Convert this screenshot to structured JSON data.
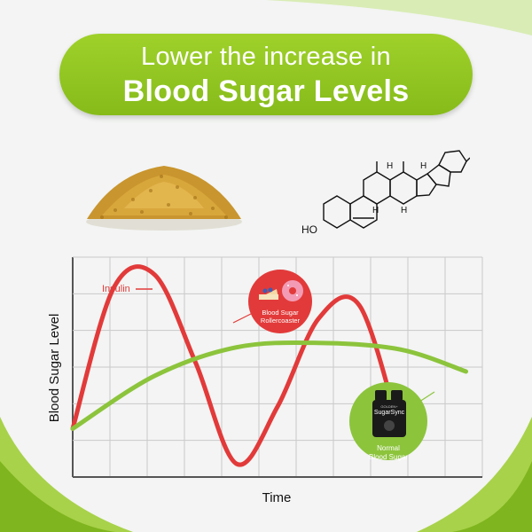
{
  "headline": {
    "line1": "Lower the increase in",
    "line2": "Blood Sugar Levels"
  },
  "molecule": {
    "hydroxyl_label": "HO",
    "hydrogen_label": "H"
  },
  "chart_data": {
    "type": "line",
    "xlabel": "Time",
    "ylabel": "Blood Sugar Level",
    "grid": true,
    "series": [
      {
        "name": "Insulin",
        "color": "#e23a3a",
        "x": [
          0,
          5,
          10,
          15,
          20,
          25,
          30,
          35,
          40
        ],
        "y": [
          1.1,
          4.3,
          4.6,
          2.6,
          0.3,
          1.6,
          3.6,
          3.9,
          1.0
        ]
      },
      {
        "name": "",
        "color": "#8cc43c",
        "x": [
          0,
          10,
          20,
          30,
          40,
          48
        ],
        "y": [
          1.1,
          2.3,
          2.95,
          3.05,
          2.9,
          2.4
        ]
      }
    ],
    "annotations": [
      {
        "text": "Insulin",
        "icon": "cake-and-donut-icon",
        "color": "#e23a3a"
      },
      {
        "text": "Blood Sugar Rollercoaster",
        "icon": "cake-and-donut-icon",
        "color": "#e23a3a"
      },
      {
        "text": "Normal Blood Sugar",
        "icon": "supplement-bottle-icon",
        "color": "#8cc43c"
      }
    ]
  },
  "callouts": {
    "rollercoaster": {
      "line1": "Blood Sugar",
      "line2": "Rollercoaster"
    },
    "normal": {
      "line1": "Normal",
      "line2": "Blood Sugar"
    },
    "product": {
      "brand": "SugarSync",
      "small": "GOLDEN+"
    }
  },
  "colors": {
    "accent_green": "#8cc43c",
    "banner_green": "#92c51f",
    "curve_red": "#e23a3a",
    "grid": "#c9c9c9"
  }
}
